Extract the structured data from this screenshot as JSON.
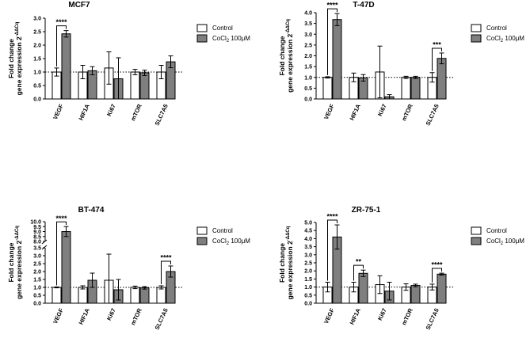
{
  "chart_data": [
    {
      "type": "bar",
      "title": "MCF7",
      "ylabel": "Fold change gene expression 2^-ΔΔCq",
      "ylabel_line1": "Fold change",
      "ylabel_line2": "gene expression 2",
      "ylabel_sup": "-ΔΔCq",
      "ylim": [
        0,
        3.0
      ],
      "yticks": [
        "0.0",
        "0.5",
        "1.0",
        "1.5",
        "2.0",
        "2.5",
        "3.0"
      ],
      "categories": [
        "VEGF",
        "HIF1A",
        "Ki67",
        "mTOR",
        "SLC7A5"
      ],
      "series": [
        {
          "name": "Control",
          "values": [
            1.0,
            1.0,
            1.15,
            1.0,
            1.0
          ],
          "err": [
            0.15,
            0.25,
            0.6,
            0.1,
            0.25
          ]
        },
        {
          "name": "CoCl2 100μM",
          "values": [
            2.42,
            1.05,
            0.75,
            0.97,
            1.38
          ],
          "err": [
            0.12,
            0.15,
            0.78,
            0.1,
            0.22
          ]
        }
      ],
      "reference_line": 1.0,
      "significance": [
        {
          "category": "VEGF",
          "label": "****"
        }
      ]
    },
    {
      "type": "bar",
      "title": "T-47D",
      "ylabel": "Fold change gene expression 2^-ΔΔCq",
      "ylabel_line1": "Fold change",
      "ylabel_line2": "gene expression 2",
      "ylabel_sup": "-ΔΔCq",
      "ylim": [
        0,
        4.0
      ],
      "yticks": [
        "0.0",
        "0.5",
        "1.0",
        "1.5",
        "2.0",
        "2.5",
        "3.0",
        "3.5",
        "4.0"
      ],
      "categories": [
        "VEGF",
        "HIF1A",
        "Ki67",
        "mTOR",
        "SLC7A5"
      ],
      "series": [
        {
          "name": "Control",
          "values": [
            1.0,
            1.0,
            1.25,
            1.0,
            1.0
          ],
          "err": [
            0.03,
            0.2,
            1.2,
            0.05,
            0.22
          ]
        },
        {
          "name": "CoCl2 100μM",
          "values": [
            3.68,
            0.98,
            0.1,
            1.0,
            1.88
          ],
          "err": [
            0.28,
            0.15,
            0.1,
            0.05,
            0.25
          ]
        }
      ],
      "reference_line": 1.0,
      "significance": [
        {
          "category": "VEGF",
          "label": "****"
        },
        {
          "category": "SLC7A5",
          "label": "***"
        }
      ]
    },
    {
      "type": "bar",
      "title": "BT-474",
      "ylabel": "Fold change gene expression 2^-ΔΔCq",
      "ylabel_line1": "Fold change",
      "ylabel_line2": "gene expression 2",
      "ylabel_sup": "-ΔΔCq",
      "ylim": [
        0,
        10.0
      ],
      "axis_break": [
        3.5,
        8.0
      ],
      "yticks": [
        "0.0",
        "0.5",
        "1.0",
        "1.5",
        "2.0",
        "2.5",
        "3.0",
        "3.5",
        "8.0",
        "8.5",
        "9.0",
        "9.5",
        "10.0"
      ],
      "categories": [
        "VEGF",
        "HIF1A",
        "Ki67",
        "mTOR",
        "SLC7A5"
      ],
      "series": [
        {
          "name": "Control",
          "values": [
            1.0,
            1.0,
            1.45,
            1.0,
            1.0
          ],
          "err": [
            0.03,
            0.1,
            1.65,
            0.08,
            0.1
          ]
        },
        {
          "name": "CoCl2 100μM",
          "values": [
            9.0,
            1.45,
            0.85,
            0.97,
            2.0
          ],
          "err": [
            0.5,
            0.45,
            0.65,
            0.08,
            0.35
          ]
        }
      ],
      "reference_line": 1.0,
      "significance": [
        {
          "category": "VEGF",
          "label": "****"
        },
        {
          "category": "SLC7A5",
          "label": "****"
        }
      ]
    },
    {
      "type": "bar",
      "title": "ZR-75-1",
      "ylabel": "Fold change gene expression 2^-ΔΔCq",
      "ylabel_line1": "Fold change",
      "ylabel_line2": "gene expression 2",
      "ylabel_sup": "-ΔΔCq",
      "ylim": [
        0,
        5.0
      ],
      "yticks": [
        "0.0",
        "0.5",
        "1.0",
        "1.5",
        "2.0",
        "2.5",
        "3.0",
        "3.5",
        "4.0",
        "4.5",
        "5.0"
      ],
      "categories": [
        "VEGF",
        "HIF1A",
        "Ki67",
        "mTOR",
        "SLC7A5"
      ],
      "series": [
        {
          "name": "Control",
          "values": [
            1.0,
            1.0,
            1.15,
            1.0,
            1.0
          ],
          "err": [
            0.3,
            0.3,
            0.55,
            0.2,
            0.18
          ]
        },
        {
          "name": "CoCl2 100μM",
          "values": [
            4.1,
            1.85,
            0.75,
            1.1,
            1.8
          ],
          "err": [
            0.75,
            0.2,
            0.55,
            0.08,
            0.06
          ]
        }
      ],
      "reference_line": 1.0,
      "significance": [
        {
          "category": "VEGF",
          "label": "****"
        },
        {
          "category": "HIF1A",
          "label": "**"
        },
        {
          "category": "SLC7A5",
          "label": "****"
        }
      ]
    }
  ],
  "legend": {
    "control_label": "Control",
    "treatment_label_prefix": "CoCl",
    "treatment_label_sub": "2",
    "treatment_label_suffix": " 100μM"
  },
  "colors": {
    "control_fill": "#ffffff",
    "treatment_fill": "#7f7f7f",
    "stroke": "#000000"
  }
}
